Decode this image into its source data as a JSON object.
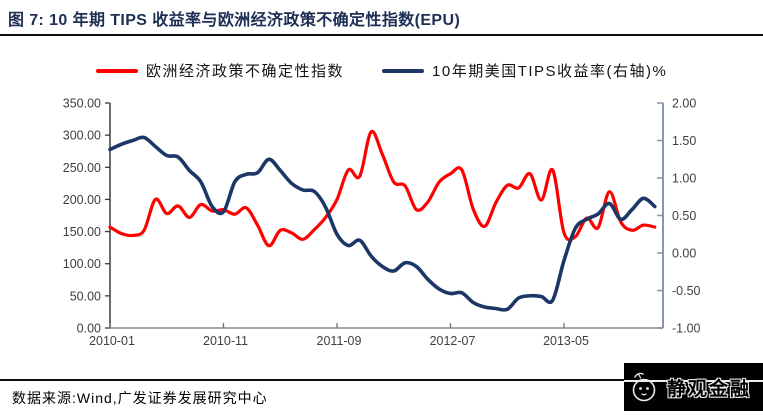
{
  "header": {
    "title": "图 7: 10 年期 TIPS 收益率与欧洲经济政策不确定性指数(EPU)"
  },
  "legend": [
    {
      "label": "欧洲经济政策不确定性指数",
      "color": "#fe0000"
    },
    {
      "label": "10年期美国TIPS收益率(右轴)%",
      "color": "#1c3667"
    }
  ],
  "footer": {
    "source": "数据来源:Wind,广发证券发展研究中心",
    "logo_text": "静观金融"
  },
  "chart_data": {
    "type": "line",
    "title": "10 年期 TIPS 收益率与欧洲经济政策不确定性指数(EPU)",
    "grid": false,
    "legend_position": "top",
    "x_tick_labels": [
      "2010-01",
      "2010-11",
      "2011-09",
      "2012-07",
      "2013-05"
    ],
    "x_tick_indices": [
      0,
      10,
      20,
      30,
      40
    ],
    "x_months": [
      "2010-01",
      "2010-02",
      "2010-03",
      "2010-04",
      "2010-05",
      "2010-06",
      "2010-07",
      "2010-08",
      "2010-09",
      "2010-10",
      "2010-11",
      "2010-12",
      "2011-01",
      "2011-02",
      "2011-03",
      "2011-04",
      "2011-05",
      "2011-06",
      "2011-07",
      "2011-08",
      "2011-09",
      "2011-10",
      "2011-11",
      "2011-12",
      "2012-01",
      "2012-02",
      "2012-03",
      "2012-04",
      "2012-05",
      "2012-06",
      "2012-07",
      "2012-08",
      "2012-09",
      "2012-10",
      "2012-11",
      "2012-12",
      "2013-01",
      "2013-02",
      "2013-03",
      "2013-04",
      "2013-05",
      "2013-06",
      "2013-07",
      "2013-08",
      "2013-09",
      "2013-10",
      "2013-11",
      "2013-12",
      "2014-01"
    ],
    "left_axis": {
      "min": 0,
      "max": 350,
      "tick_labels": [
        "350.00",
        "300.00",
        "250.00",
        "200.00",
        "150.00",
        "100.00",
        "50.00",
        "0.00"
      ]
    },
    "right_axis": {
      "min": -1.0,
      "max": 2.0,
      "tick_labels": [
        "2.00",
        "1.50",
        "1.00",
        "0.50",
        "0.00",
        "-0.50",
        "-1.00"
      ]
    },
    "series": [
      {
        "name": "欧洲经济政策不确定性指数",
        "axis": "left",
        "color": "#fe0000",
        "values": [
          157,
          147,
          144,
          152,
          200,
          178,
          190,
          172,
          192,
          182,
          184,
          177,
          187,
          160,
          128,
          152,
          148,
          138,
          153,
          172,
          200,
          246,
          236,
          305,
          270,
          227,
          221,
          184,
          196,
          227,
          240,
          246,
          185,
          158,
          195,
          222,
          218,
          240,
          199,
          246,
          148,
          142,
          171,
          156,
          212,
          165,
          152,
          160,
          157
        ]
      },
      {
        "name": "10年期美国TIPS收益率(右轴)%",
        "axis": "right",
        "color": "#1c3667",
        "values": [
          1.38,
          1.45,
          1.5,
          1.54,
          1.42,
          1.3,
          1.28,
          1.1,
          0.95,
          0.62,
          0.55,
          0.95,
          1.05,
          1.07,
          1.25,
          1.1,
          0.93,
          0.84,
          0.82,
          0.61,
          0.25,
          0.1,
          0.17,
          -0.04,
          -0.18,
          -0.24,
          -0.13,
          -0.18,
          -0.35,
          -0.48,
          -0.54,
          -0.53,
          -0.66,
          -0.72,
          -0.74,
          -0.75,
          -0.6,
          -0.57,
          -0.58,
          -0.63,
          -0.1,
          0.33,
          0.45,
          0.52,
          0.66,
          0.45,
          0.58,
          0.73,
          0.62
        ]
      }
    ]
  }
}
